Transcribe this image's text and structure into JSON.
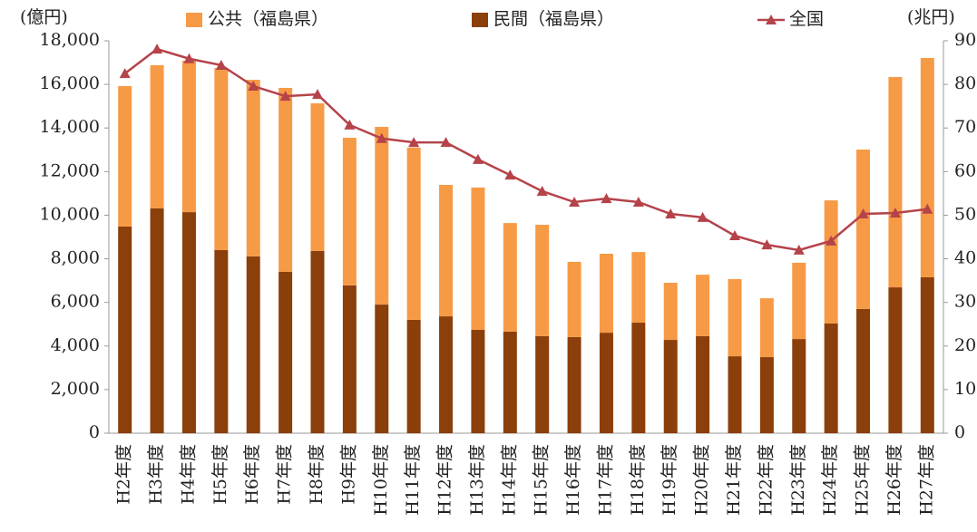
{
  "chart_data": {
    "type": "bar",
    "stacked": true,
    "y_unit": "(億円)",
    "y2_unit": "(兆円)",
    "categories": [
      "H2年度",
      "H3年度",
      "H4年度",
      "H5年度",
      "H6年度",
      "H7年度",
      "H8年度",
      "H9年度",
      "H10年度",
      "H11年度",
      "H12年度",
      "H13年度",
      "H14年度",
      "H15年度",
      "H16年度",
      "H17年度",
      "H18年度",
      "H19年度",
      "H20年度",
      "H21年度",
      "H22年度",
      "H23年度",
      "H24年度",
      "H25年度",
      "H26年度",
      "H27年度"
    ],
    "series": [
      {
        "name": "公共（福島県）",
        "color": "#f79a46",
        "values": [
          6440,
          6570,
          6950,
          8350,
          8100,
          8440,
          6770,
          6770,
          8150,
          7900,
          6030,
          6530,
          4980,
          5110,
          3450,
          3620,
          3240,
          2620,
          2820,
          3540,
          2700,
          3500,
          5650,
          7310,
          9650,
          10060
        ]
      },
      {
        "name": "民間（福島県）",
        "color": "#8b3f0b",
        "values": [
          9480,
          10310,
          10140,
          8400,
          8110,
          7400,
          8360,
          6780,
          5900,
          5200,
          5360,
          4740,
          4660,
          4450,
          4410,
          4610,
          5070,
          4280,
          4450,
          3530,
          3490,
          4320,
          5030,
          5700,
          6690,
          7150
        ]
      },
      {
        "name": "全国",
        "color": "#b5434a",
        "type": "line",
        "axis": "y2",
        "values": [
          82.5,
          88.1,
          85.9,
          84.4,
          79.6,
          77.3,
          77.7,
          70.7,
          67.6,
          66.7,
          66.7,
          62.8,
          59.2,
          55.5,
          53.0,
          53.8,
          53.0,
          50.3,
          49.5,
          45.3,
          43.2,
          42.0,
          44.1,
          50.3,
          50.5,
          51.4
        ]
      }
    ],
    "ylim": [
      0,
      18000
    ],
    "yticks": [
      0,
      {
        "value": 2000,
        "label": "2,000"
      },
      {
        "value": 4000,
        "label": "4,000"
      },
      {
        "value": 6000,
        "label": "6,000"
      },
      {
        "value": 8000,
        "label": "8,000"
      },
      {
        "value": 10000,
        "label": "10,000"
      },
      {
        "value": 12000,
        "label": "12,000"
      },
      {
        "value": 14000,
        "label": "14,000"
      },
      {
        "value": 16000,
        "label": "16,000"
      },
      {
        "value": 18000,
        "label": "18,000"
      }
    ],
    "y2lim": [
      0,
      90
    ],
    "y2ticks": [
      0,
      10,
      20,
      30,
      40,
      50,
      60,
      70,
      80,
      90
    ]
  }
}
